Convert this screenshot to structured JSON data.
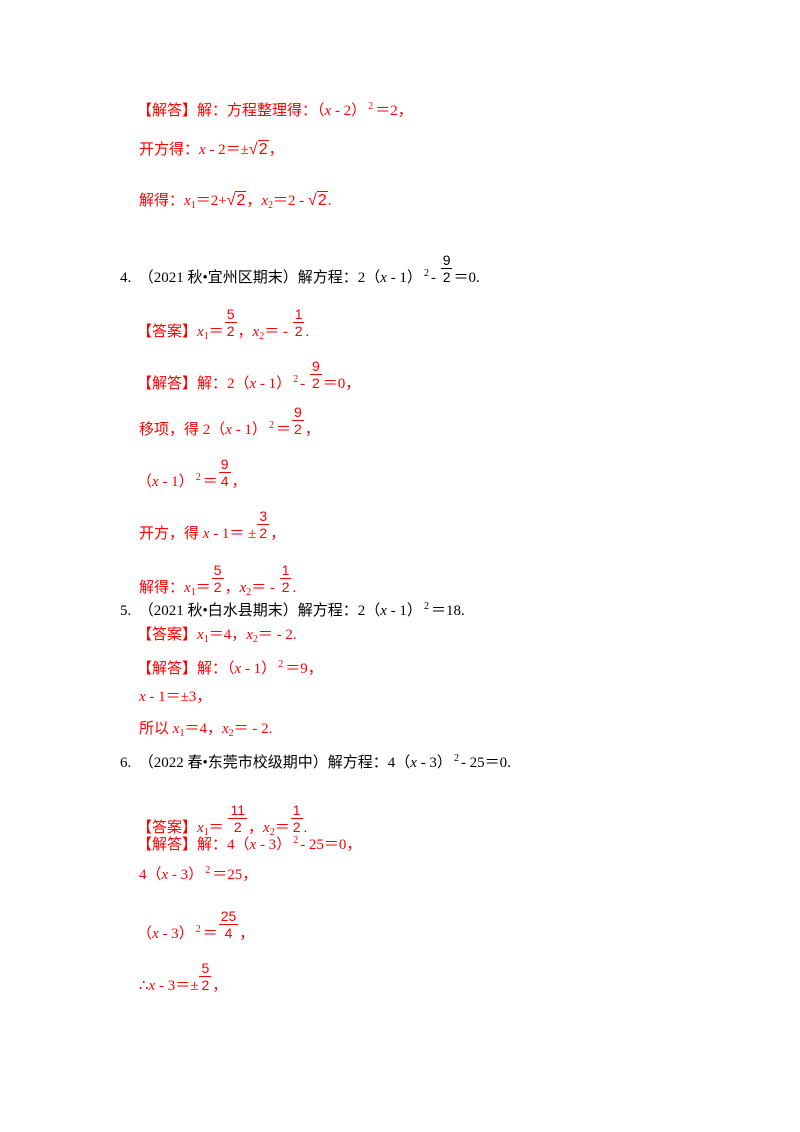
{
  "colors": {
    "answer": "#ff0000",
    "question": "#000000"
  },
  "lines": [
    {
      "top": 98,
      "left": 137,
      "red": true,
      "parts": [
        {
          "t": "【解答】解：方程整理得：（"
        },
        {
          "i": "x"
        },
        {
          "t": " - 2）"
        },
        {
          "sup": "2"
        },
        {
          "t": "＝2，"
        }
      ]
    },
    {
      "top": 141,
      "left": 139,
      "red": true,
      "parts": [
        {
          "t": "开方得："
        },
        {
          "i": "x"
        },
        {
          "t": " - 2＝±"
        },
        {
          "sqrt": "2"
        },
        {
          "t": "，"
        }
      ]
    },
    {
      "top": 192,
      "left": 139,
      "red": true,
      "parts": [
        {
          "t": "解得："
        },
        {
          "i": "x"
        },
        {
          "sub": "1"
        },
        {
          "t": "＝2+"
        },
        {
          "sqrt": "2"
        },
        {
          "t": "，"
        },
        {
          "i": "x"
        },
        {
          "sub": "2"
        },
        {
          "t": "＝2 - "
        },
        {
          "sqrt": "2"
        },
        {
          "t": "."
        }
      ]
    },
    {
      "top": 252,
      "left": 120,
      "red": false,
      "parts": [
        {
          "t": "4.　（2021 秋•宜州区期末）解方程：2（"
        },
        {
          "i": "x"
        },
        {
          "t": " - 1）"
        },
        {
          "sup": "2"
        },
        {
          "t": "- "
        },
        {
          "frac": [
            "9",
            "2"
          ]
        },
        {
          "t": "＝0."
        }
      ]
    },
    {
      "top": 306,
      "left": 137,
      "red": true,
      "parts": [
        {
          "t": "【答案】"
        },
        {
          "i": "x"
        },
        {
          "sub": "1"
        },
        {
          "t": "＝"
        },
        {
          "frac": [
            "5",
            "2"
          ]
        },
        {
          "t": "，"
        },
        {
          "i": "x"
        },
        {
          "sub": "2"
        },
        {
          "t": "＝ - "
        },
        {
          "frac": [
            "1",
            "2"
          ]
        },
        {
          "t": "."
        }
      ]
    },
    {
      "top": 358,
      "left": 137,
      "red": true,
      "parts": [
        {
          "t": "【解答】解：2（"
        },
        {
          "i": "x"
        },
        {
          "t": " - 1）"
        },
        {
          "sup": "2"
        },
        {
          "t": "- "
        },
        {
          "frac": [
            "9",
            "2"
          ]
        },
        {
          "t": "＝0，"
        }
      ]
    },
    {
      "top": 404,
      "left": 139,
      "red": true,
      "parts": [
        {
          "t": "移项，得 2（"
        },
        {
          "i": "x"
        },
        {
          "t": " - 1）"
        },
        {
          "sup": "2"
        },
        {
          "t": "＝"
        },
        {
          "frac": [
            "9",
            "2"
          ]
        },
        {
          "t": "，"
        }
      ]
    },
    {
      "top": 456,
      "left": 137,
      "red": true,
      "parts": [
        {
          "t": "（"
        },
        {
          "i": "x"
        },
        {
          "t": " - 1）"
        },
        {
          "sup": "2"
        },
        {
          "t": "＝"
        },
        {
          "frac": [
            "9",
            "4"
          ]
        },
        {
          "t": "，"
        }
      ]
    },
    {
      "top": 508,
      "left": 139,
      "red": true,
      "parts": [
        {
          "t": "开方，得 "
        },
        {
          "i": "x"
        },
        {
          "t": " - 1＝ ±"
        },
        {
          "frac": [
            "3",
            "2"
          ]
        },
        {
          "t": "，"
        }
      ]
    },
    {
      "top": 562,
      "left": 139,
      "red": true,
      "parts": [
        {
          "t": "解得："
        },
        {
          "i": "x"
        },
        {
          "sub": "1"
        },
        {
          "t": "＝"
        },
        {
          "frac": [
            "5",
            "2"
          ]
        },
        {
          "t": "，"
        },
        {
          "i": "x"
        },
        {
          "sub": "2"
        },
        {
          "t": "＝ - "
        },
        {
          "frac": [
            "1",
            "2"
          ]
        },
        {
          "t": "."
        }
      ]
    },
    {
      "top": 598,
      "left": 120,
      "red": false,
      "parts": [
        {
          "t": "5.　（2021 秋•白水县期末）解方程：2（"
        },
        {
          "i": "x"
        },
        {
          "t": " - 1）"
        },
        {
          "sup": "2"
        },
        {
          "t": "＝18."
        }
      ]
    },
    {
      "top": 626,
      "left": 137,
      "red": true,
      "parts": [
        {
          "t": "【答案】"
        },
        {
          "i": "x"
        },
        {
          "sub": "1"
        },
        {
          "t": "＝4，"
        },
        {
          "i": "x"
        },
        {
          "sub": "2"
        },
        {
          "t": "＝ - 2."
        }
      ]
    },
    {
      "top": 656,
      "left": 137,
      "red": true,
      "parts": [
        {
          "t": "【解答】解：（"
        },
        {
          "i": "x"
        },
        {
          "t": " - 1）"
        },
        {
          "sup": "2"
        },
        {
          "t": "＝9，"
        }
      ]
    },
    {
      "top": 688,
      "left": 139,
      "red": true,
      "parts": [
        {
          "i": "x"
        },
        {
          "t": " - 1＝±3，"
        }
      ]
    },
    {
      "top": 720,
      "left": 139,
      "red": true,
      "parts": [
        {
          "t": "所以 "
        },
        {
          "i": "x"
        },
        {
          "sub": "1"
        },
        {
          "t": "＝4，"
        },
        {
          "i": "x"
        },
        {
          "sub": "2"
        },
        {
          "t": "＝ - 2."
        }
      ]
    },
    {
      "top": 750,
      "left": 120,
      "red": false,
      "parts": [
        {
          "t": "6.　（2022 春•东莞市校级期中）解方程：4（"
        },
        {
          "i": "x"
        },
        {
          "t": " - 3）"
        },
        {
          "sup": "2"
        },
        {
          "t": "- 25＝0."
        }
      ]
    },
    {
      "top": 802,
      "left": 137,
      "red": true,
      "parts": [
        {
          "t": "【答案】"
        },
        {
          "i": "x"
        },
        {
          "sub": "1"
        },
        {
          "t": "＝ "
        },
        {
          "frac": [
            "11",
            "2"
          ]
        },
        {
          "t": "，"
        },
        {
          "i": "x"
        },
        {
          "sub": "2"
        },
        {
          "t": "＝"
        },
        {
          "frac": [
            "1",
            "2"
          ]
        },
        {
          "t": "."
        }
      ]
    },
    {
      "top": 832,
      "left": 137,
      "red": true,
      "parts": [
        {
          "t": "【解答】解：4（"
        },
        {
          "i": "x"
        },
        {
          "t": " - 3）"
        },
        {
          "sup": "2"
        },
        {
          "t": "- 25＝0，"
        }
      ]
    },
    {
      "top": 862,
      "left": 139,
      "red": true,
      "parts": [
        {
          "t": "4（"
        },
        {
          "i": "x"
        },
        {
          "t": " - 3）"
        },
        {
          "sup": "2"
        },
        {
          "t": "＝25，"
        }
      ]
    },
    {
      "top": 908,
      "left": 137,
      "red": true,
      "parts": [
        {
          "t": "（"
        },
        {
          "i": "x"
        },
        {
          "t": " - 3）"
        },
        {
          "sup": "2"
        },
        {
          "t": "＝"
        },
        {
          "frac": [
            "25",
            "4"
          ]
        },
        {
          "t": "，"
        }
      ]
    },
    {
      "top": 960,
      "left": 139,
      "red": true,
      "parts": [
        {
          "t": "∴"
        },
        {
          "i": "x"
        },
        {
          "t": " - 3＝±"
        },
        {
          "frac": [
            "5",
            "2"
          ]
        },
        {
          "t": "，"
        }
      ]
    }
  ]
}
